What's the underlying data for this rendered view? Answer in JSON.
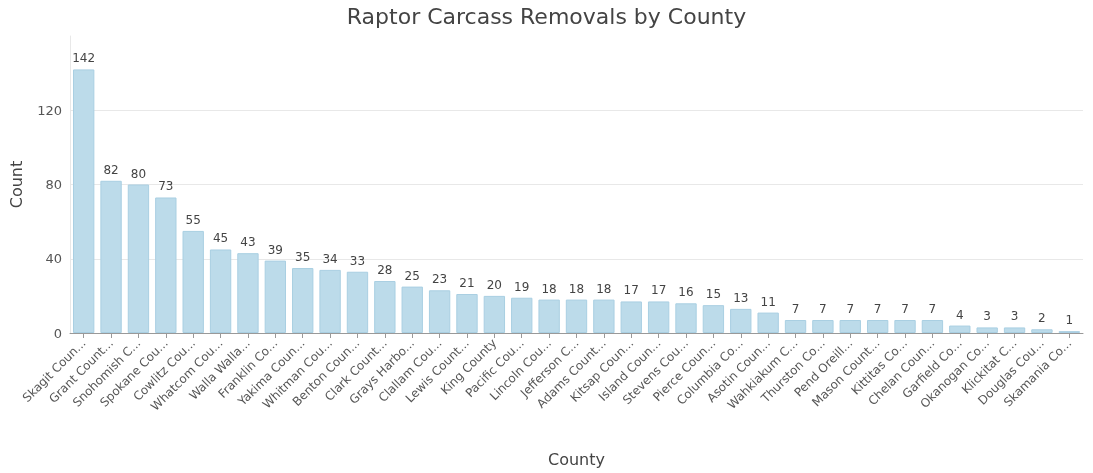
{
  "chart_data": {
    "type": "bar",
    "title": "Raptor Carcass Removals by County",
    "xlabel": "County",
    "ylabel": "Count",
    "categories": [
      "Skagit Coun...",
      "Grant Count...",
      "Snohomish C...",
      "Spokane Cou...",
      "Cowlitz Cou...",
      "Whatcom Cou...",
      "Walla Walla...",
      "Franklin Co...",
      "Yakima Coun...",
      "Whitman Cou...",
      "Benton Coun...",
      "Clark Count...",
      "Grays Harbo...",
      "Clallam Cou...",
      "Lewis Count...",
      "King County",
      "Pacific Cou...",
      "Lincoln Cou...",
      "Jefferson C...",
      "Adams Count...",
      "Kitsap Coun...",
      "Island Coun...",
      "Stevens Cou...",
      "Pierce Coun...",
      "Columbia Co...",
      "Asotin Coun...",
      "Wahkiakum C...",
      "Thurston Co...",
      "Pend Oreill...",
      "Mason Count...",
      "Kittitas Co...",
      "Chelan Coun...",
      "Garfield Co...",
      "Okanogan Co...",
      "Klickitat C...",
      "Douglas Cou...",
      "Skamania Co..."
    ],
    "values": [
      142,
      82,
      80,
      73,
      55,
      45,
      43,
      39,
      35,
      34,
      33,
      28,
      25,
      23,
      21,
      20,
      19,
      18,
      18,
      18,
      17,
      17,
      16,
      15,
      13,
      11,
      7,
      7,
      7,
      7,
      7,
      7,
      4,
      3,
      3,
      2,
      1
    ],
    "color": "#bcdbea",
    "ylim": [
      0,
      160
    ],
    "yticks": [
      0,
      40,
      80,
      120
    ],
    "grid": "y",
    "data_labels": true
  }
}
